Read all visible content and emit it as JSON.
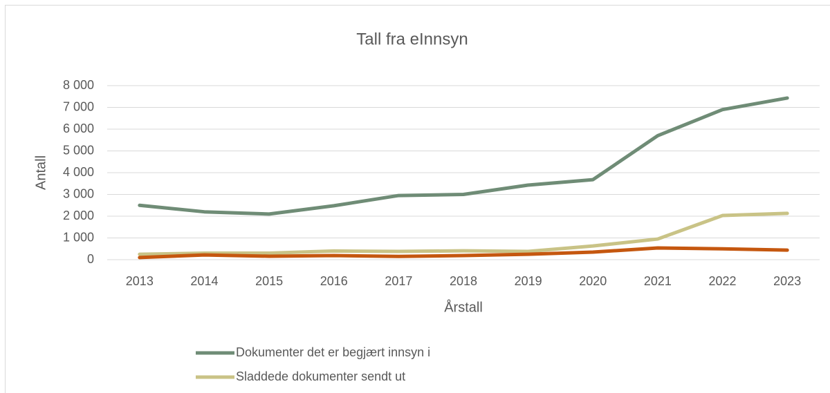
{
  "chart_data": {
    "type": "line",
    "title": "Tall fra eInnsyn",
    "xlabel": "Årstall",
    "ylabel": "Antall",
    "categories": [
      "2013",
      "2014",
      "2015",
      "2016",
      "2017",
      "2018",
      "2019",
      "2020",
      "2021",
      "2022",
      "2023"
    ],
    "series": [
      {
        "name": "Dokumenter det er begjært innsyn i",
        "color": "#6f8c76",
        "values": [
          2500,
          2200,
          2100,
          2480,
          2950,
          3000,
          3430,
          3680,
          5700,
          6900,
          7430
        ]
      },
      {
        "name": "Sladdede dokumenter sendt ut",
        "color": "#c9c386",
        "values": [
          250,
          300,
          300,
          400,
          380,
          410,
          380,
          630,
          950,
          2030,
          2130
        ]
      },
      {
        "color": "#c5570f",
        "values": [
          100,
          220,
          160,
          190,
          150,
          190,
          250,
          350,
          540,
          500,
          440
        ]
      }
    ],
    "ylim": [
      0,
      8000
    ],
    "yticks": [
      0,
      {
        "value": 1000,
        "label": "1 000"
      },
      {
        "value": 2000,
        "label": "2 000"
      },
      {
        "value": 3000,
        "label": "3 000"
      },
      {
        "value": 4000,
        "label": "4 000"
      },
      {
        "value": 5000,
        "label": "5 000"
      },
      {
        "value": 6000,
        "label": "6 000"
      },
      {
        "value": 7000,
        "label": "7 000"
      },
      {
        "value": 8000,
        "label": "8 000"
      }
    ],
    "grid": true
  }
}
